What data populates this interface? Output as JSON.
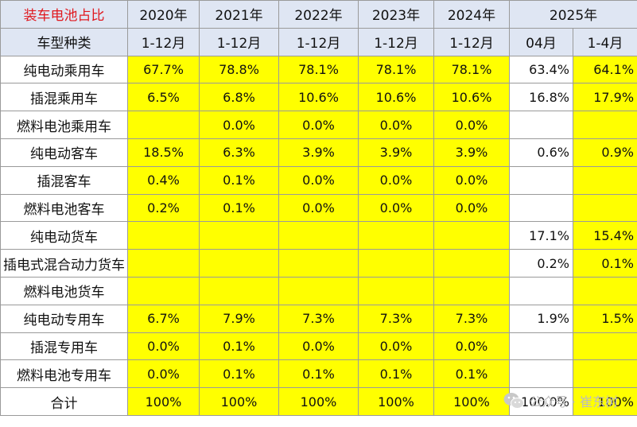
{
  "header": {
    "title": "装车电池占比",
    "years": [
      "2020年",
      "2021年",
      "2022年",
      "2023年",
      "2024年",
      "2025年"
    ],
    "type_label": "车型种类",
    "periods": [
      "1-12月",
      "1-12月",
      "1-12月",
      "1-12月",
      "1-12月",
      "04月",
      "1-4月"
    ]
  },
  "rows": [
    {
      "label": "纯电动乘用车",
      "values": [
        "67.7%",
        "78.8%",
        "78.1%",
        "78.1%",
        "78.1%",
        "63.4%",
        "64.1%"
      ]
    },
    {
      "label": "插混乘用车",
      "values": [
        "6.5%",
        "6.8%",
        "10.6%",
        "10.6%",
        "10.6%",
        "16.8%",
        "17.9%"
      ]
    },
    {
      "label": "燃料电池乘用车",
      "values": [
        "",
        "0.0%",
        "0.0%",
        "0.0%",
        "0.0%",
        "",
        ""
      ]
    },
    {
      "label": "纯电动客车",
      "values": [
        "18.5%",
        "6.3%",
        "3.9%",
        "3.9%",
        "3.9%",
        "0.6%",
        "0.9%"
      ]
    },
    {
      "label": "插混客车",
      "values": [
        "0.4%",
        "0.1%",
        "0.0%",
        "0.0%",
        "0.0%",
        "",
        ""
      ]
    },
    {
      "label": "燃料电池客车",
      "values": [
        "0.2%",
        "0.1%",
        "0.0%",
        "0.0%",
        "0.0%",
        "",
        ""
      ]
    },
    {
      "label": "纯电动货车",
      "values": [
        "",
        "",
        "",
        "",
        "",
        "17.1%",
        "15.4%"
      ]
    },
    {
      "label": "插电式混合动力货车",
      "values": [
        "",
        "",
        "",
        "",
        "",
        "0.2%",
        "0.1%"
      ]
    },
    {
      "label": "燃料电池货车",
      "values": [
        "",
        "",
        "",
        "",
        "",
        "",
        ""
      ]
    },
    {
      "label": "纯电动专用车",
      "values": [
        "6.7%",
        "7.9%",
        "7.3%",
        "7.3%",
        "7.3%",
        "1.9%",
        "1.5%"
      ]
    },
    {
      "label": "插混专用车",
      "values": [
        "0.0%",
        "0.1%",
        "0.0%",
        "0.0%",
        "0.0%",
        "",
        ""
      ]
    },
    {
      "label": "燃料电池专用车",
      "values": [
        "0.0%",
        "0.1%",
        "0.1%",
        "0.1%",
        "0.1%",
        "",
        ""
      ]
    },
    {
      "label": "合计",
      "values": [
        "100%",
        "100%",
        "100%",
        "100%",
        "100%",
        "100.0%",
        "100%"
      ]
    }
  ],
  "watermark": {
    "text": "公众号 · 崔东树",
    "icon": "wechat-icon"
  },
  "colors": {
    "highlight": "#ffff00",
    "header_bg": "#dfe6f3",
    "title": "#e0191f"
  }
}
